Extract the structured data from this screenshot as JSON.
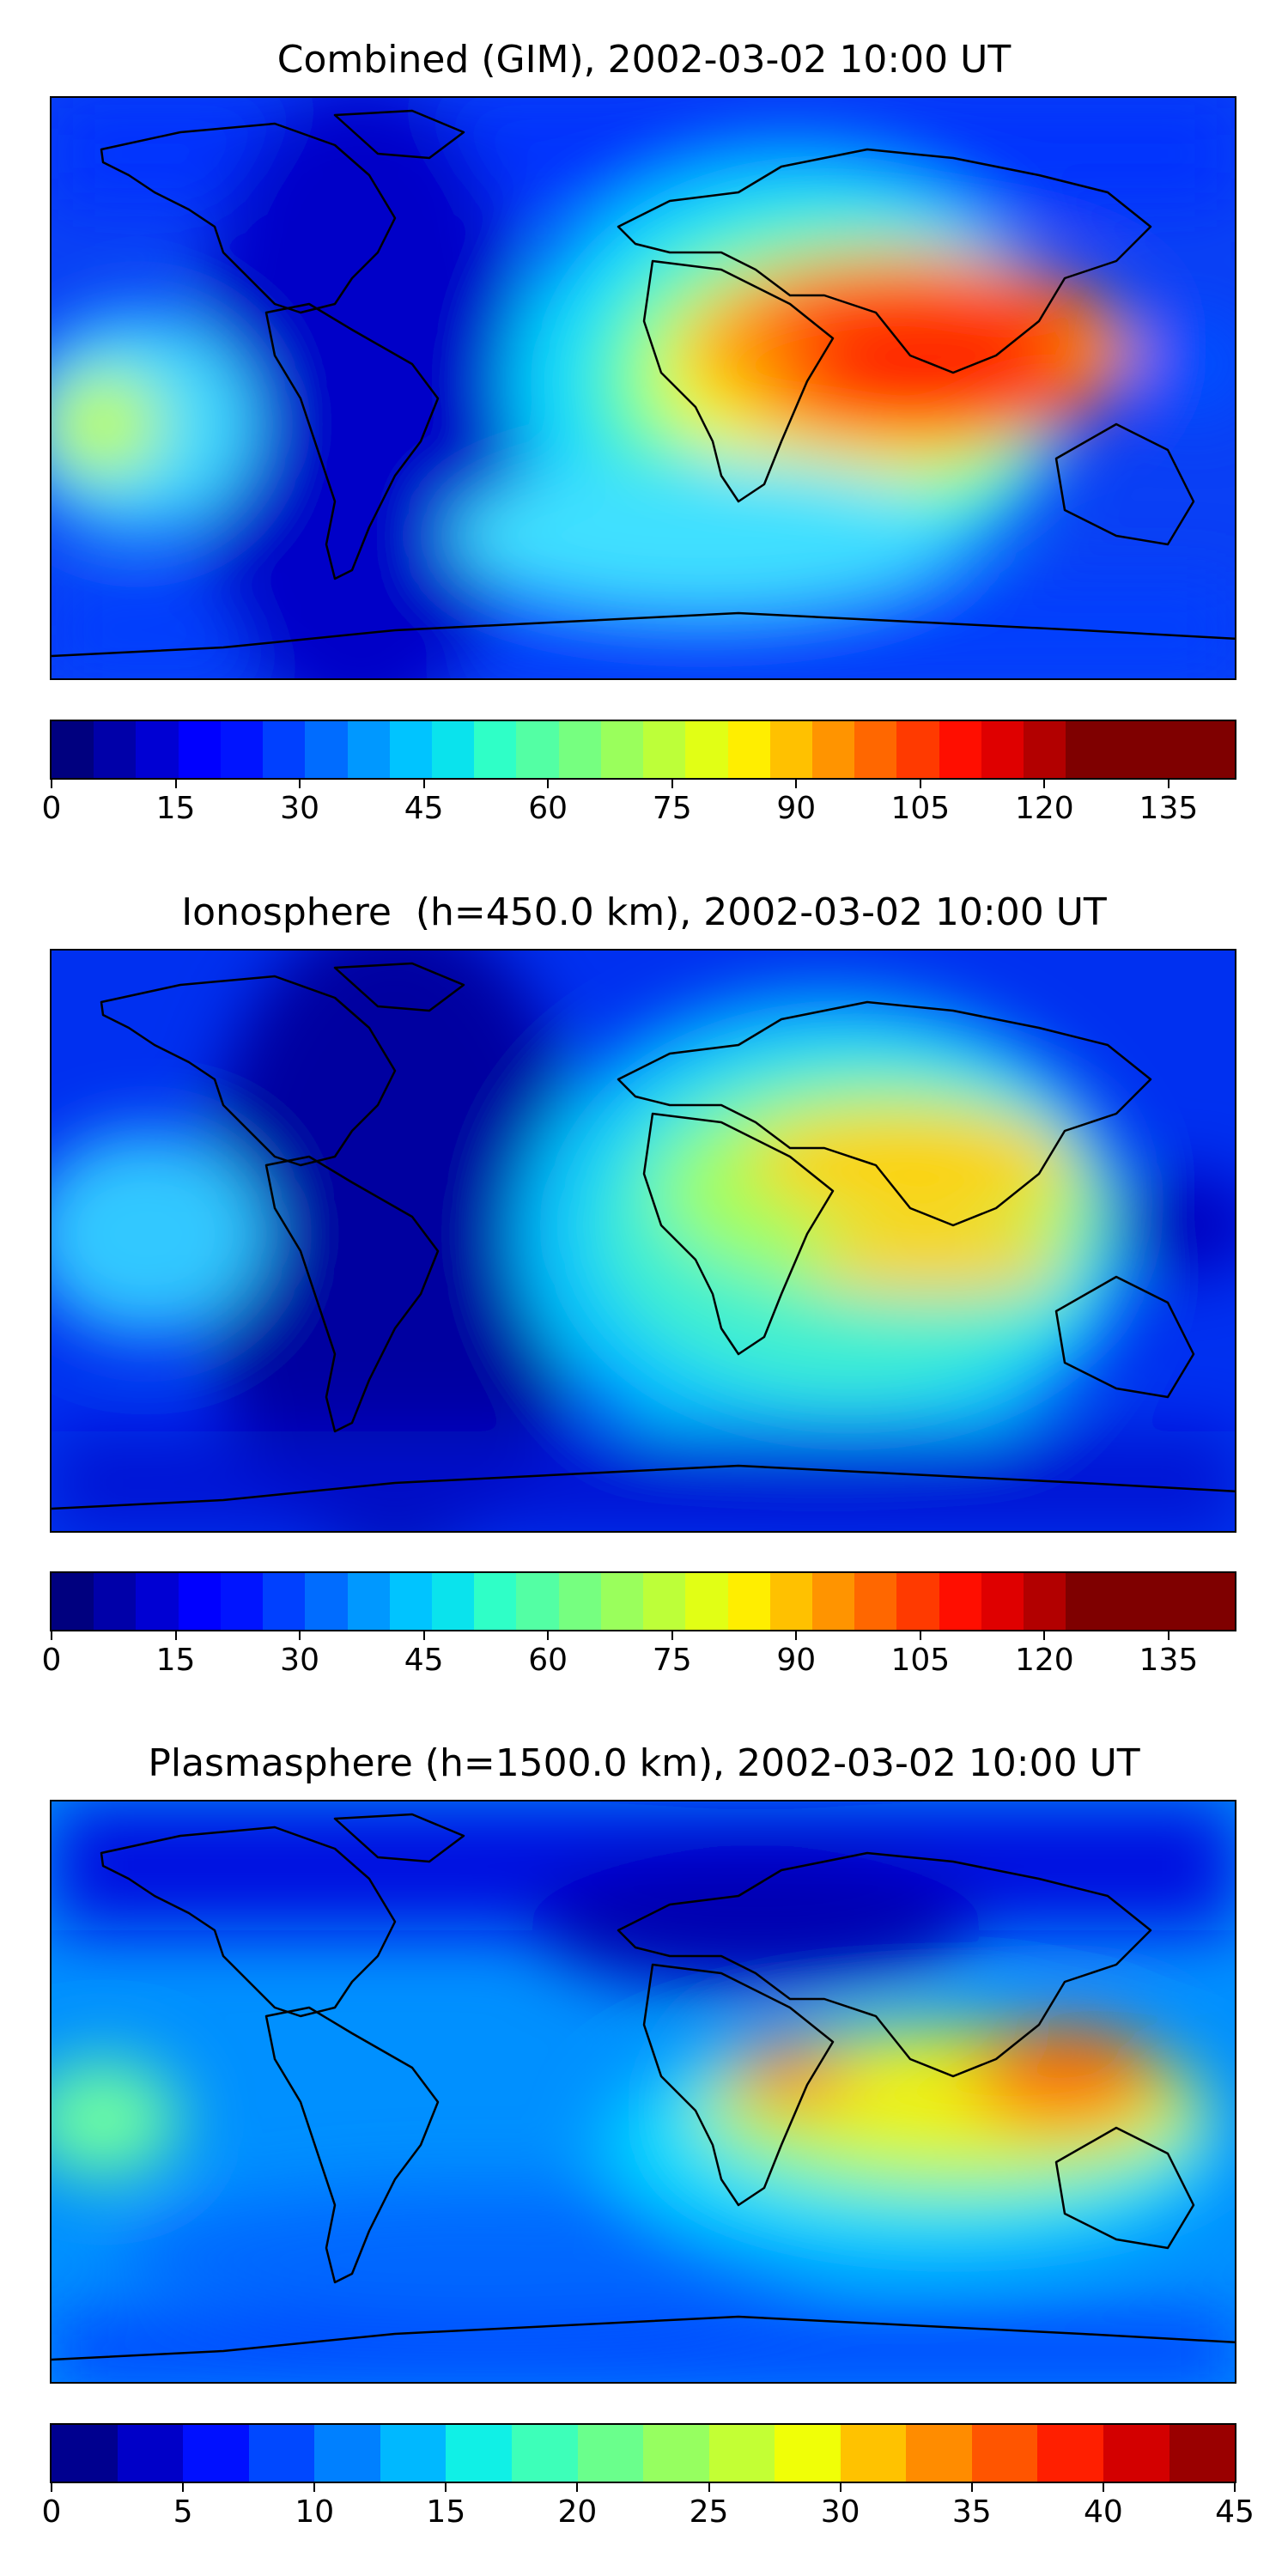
{
  "palette": {
    "jet28": [
      "#00007f",
      "#0000a9",
      "#0000d3",
      "#0000ff",
      "#0014ff",
      "#0040ff",
      "#006cff",
      "#0098ff",
      "#00c4ff",
      "#0ae3ed",
      "#2fffc7",
      "#53ffa4",
      "#76ff80",
      "#9aff5c",
      "#bdff39",
      "#e1ff15",
      "#ffee00",
      "#ffc100",
      "#ff9400",
      "#ff6700",
      "#ff3a00",
      "#ff0e00",
      "#df0000",
      "#b20000",
      "#7f0000",
      "#7f0000",
      "#7f0000",
      "#7f0000"
    ],
    "jet18": [
      "#00008f",
      "#0000c8",
      "#0010ff",
      "#0048ff",
      "#0080ff",
      "#00b8ff",
      "#10f0e6",
      "#3dffb9",
      "#6aff8c",
      "#96ff60",
      "#c3ff34",
      "#f0ff07",
      "#ffc200",
      "#ff8c00",
      "#ff5500",
      "#ff1f00",
      "#d30000",
      "#9a0000"
    ],
    "land_outline": "#000000",
    "ocean_base": "#0a3cf0"
  },
  "panels": [
    {
      "title": "Combined (GIM), 2002-03-02 10:00 UT",
      "colorbar": {
        "min": 0,
        "max": 143,
        "levels": 28,
        "ticks": [
          "0",
          "15",
          "30",
          "45",
          "60",
          "75",
          "90",
          "105",
          "120",
          "135"
        ],
        "tick_values": [
          0,
          15,
          30,
          45,
          60,
          75,
          90,
          105,
          120,
          135
        ]
      }
    },
    {
      "title": "Ionosphere  (h=450.0 km), 2002-03-02 10:00 UT",
      "colorbar": {
        "min": 0,
        "max": 143,
        "levels": 28,
        "ticks": [
          "0",
          "15",
          "30",
          "45",
          "60",
          "75",
          "90",
          "105",
          "120",
          "135"
        ],
        "tick_values": [
          0,
          15,
          30,
          45,
          60,
          75,
          90,
          105,
          120,
          135
        ]
      }
    },
    {
      "title": "Plasmasphere (h=1500.0 km), 2002-03-02 10:00 UT",
      "colorbar": {
        "min": 0,
        "max": 45,
        "levels": 18,
        "ticks": [
          "0",
          "5",
          "10",
          "15",
          "20",
          "25",
          "30",
          "35",
          "40",
          "45"
        ],
        "tick_values": [
          0,
          5,
          10,
          15,
          20,
          25,
          30,
          35,
          40,
          45
        ]
      }
    }
  ]
}
